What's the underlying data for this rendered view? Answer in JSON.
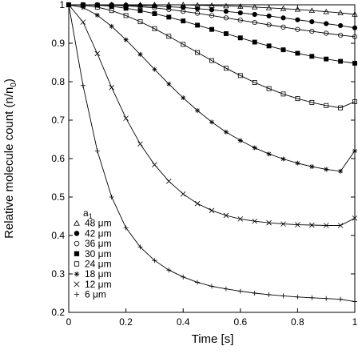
{
  "chart_data": {
    "type": "scatter",
    "title": "",
    "xlabel": "Time [s]",
    "ylabel_main": "Relative molecule count (n/n",
    "ylabel_sub": "0",
    "ylabel_tail": ")",
    "xlim": [
      0,
      1
    ],
    "ylim": [
      0.2,
      1
    ],
    "xticks": [
      0,
      0.2,
      0.4,
      0.6,
      0.8,
      1
    ],
    "xtick_labels": [
      "0",
      "0.2",
      "0.4",
      "0.6",
      "0.8",
      "1"
    ],
    "yticks": [
      0.2,
      0.3,
      0.4,
      0.5,
      0.6,
      0.7,
      0.8,
      0.9,
      1
    ],
    "ytick_labels": [
      "0.2",
      "0.3",
      "0.4",
      "0.5",
      "0.6",
      "0.7",
      "0.8",
      "0.9",
      "1"
    ],
    "grid": false,
    "legend": {
      "placement": "bottom-left",
      "title_main": "a",
      "title_sub": "1",
      "entries": [
        {
          "label": "48 μm",
          "marker": "triangle-open"
        },
        {
          "label": "42 μm",
          "marker": "circle-filled"
        },
        {
          "label": "36 μm",
          "marker": "circle-open"
        },
        {
          "label": "30 μm",
          "marker": "square-filled"
        },
        {
          "label": "24 μm",
          "marker": "square-open"
        },
        {
          "label": "18 μm",
          "marker": "asterisk"
        },
        {
          "label": "12 μm",
          "marker": "cross"
        },
        {
          "label": "6 μm",
          "marker": "plus"
        }
      ]
    },
    "fit_lines": true,
    "x": [
      0,
      0.05,
      0.1,
      0.15,
      0.2,
      0.25,
      0.3,
      0.35,
      0.4,
      0.45,
      0.5,
      0.55,
      0.6,
      0.65,
      0.7,
      0.75,
      0.8,
      0.85,
      0.9,
      0.95,
      1.0
    ],
    "series": [
      {
        "name": "48 μm",
        "marker": "triangle-open",
        "values": [
          1.0,
          1.0,
          1.0,
          1.0,
          1.0,
          1.0,
          1.0,
          1.0,
          1.0,
          0.999,
          0.998,
          0.997,
          0.996,
          0.994,
          0.992,
          0.99,
          0.988,
          0.985,
          0.982,
          0.979,
          0.975
        ]
      },
      {
        "name": "42 μm",
        "marker": "circle-filled",
        "values": [
          1.0,
          1.0,
          1.0,
          1.0,
          0.999,
          0.998,
          0.997,
          0.995,
          0.993,
          0.99,
          0.987,
          0.983,
          0.979,
          0.975,
          0.971,
          0.966,
          0.961,
          0.956,
          0.951,
          0.946,
          0.94
        ]
      },
      {
        "name": "36 μm",
        "marker": "circle-open",
        "values": [
          1.0,
          1.0,
          1.0,
          0.999,
          0.997,
          0.995,
          0.992,
          0.988,
          0.983,
          0.978,
          0.972,
          0.966,
          0.96,
          0.954,
          0.948,
          0.942,
          0.936,
          0.931,
          0.926,
          0.921,
          0.917
        ]
      },
      {
        "name": "30 μm",
        "marker": "square-filled",
        "values": [
          1.0,
          1.0,
          0.999,
          0.996,
          0.991,
          0.985,
          0.977,
          0.968,
          0.958,
          0.947,
          0.936,
          0.925,
          0.914,
          0.903,
          0.893,
          0.883,
          0.874,
          0.866,
          0.859,
          0.853,
          0.848
        ]
      },
      {
        "name": "24 μm",
        "marker": "square-open",
        "values": [
          1.0,
          0.999,
          0.994,
          0.985,
          0.972,
          0.956,
          0.938,
          0.918,
          0.897,
          0.876,
          0.855,
          0.835,
          0.816,
          0.798,
          0.782,
          0.768,
          0.756,
          0.746,
          0.738,
          0.732,
          0.748
        ]
      },
      {
        "name": "18 μm",
        "marker": "asterisk",
        "values": [
          1.0,
          0.993,
          0.973,
          0.944,
          0.909,
          0.871,
          0.832,
          0.794,
          0.758,
          0.725,
          0.695,
          0.669,
          0.647,
          0.628,
          0.612,
          0.599,
          0.588,
          0.579,
          0.572,
          0.567,
          0.62
        ]
      },
      {
        "name": "12 μm",
        "marker": "cross",
        "values": [
          1.0,
          0.955,
          0.873,
          0.785,
          0.705,
          0.638,
          0.584,
          0.541,
          0.508,
          0.483,
          0.465,
          0.452,
          0.443,
          0.437,
          0.433,
          0.43,
          0.428,
          0.427,
          0.426,
          0.426,
          0.445
        ]
      },
      {
        "name": "6 μm",
        "marker": "plus",
        "values": [
          1.0,
          0.79,
          0.62,
          0.5,
          0.42,
          0.37,
          0.335,
          0.31,
          0.292,
          0.278,
          0.268,
          0.261,
          0.255,
          0.25,
          0.246,
          0.243,
          0.24,
          0.238,
          0.236,
          0.234,
          0.228
        ]
      }
    ]
  }
}
